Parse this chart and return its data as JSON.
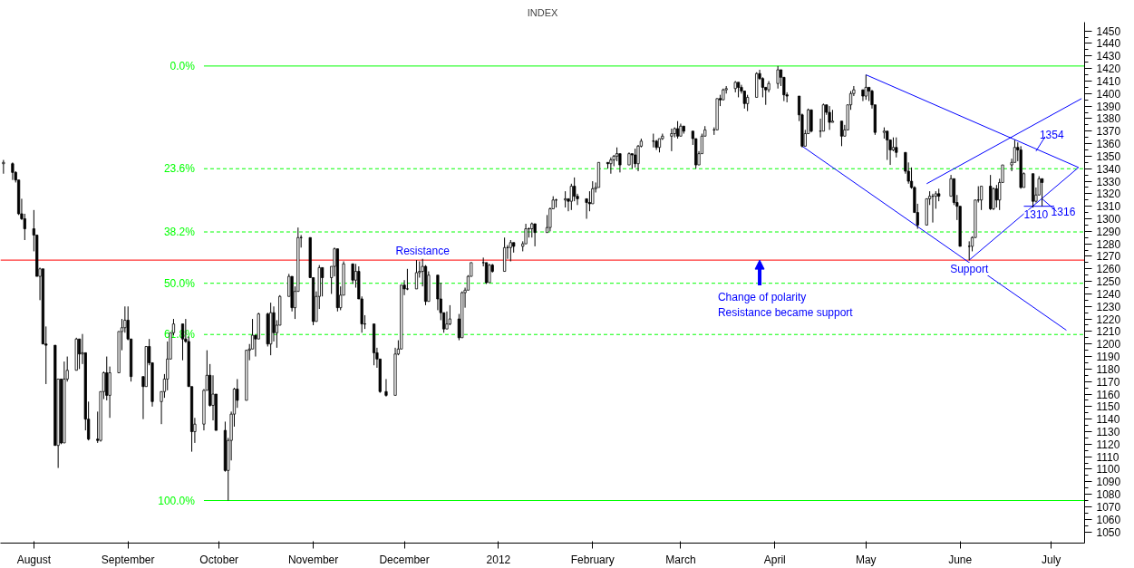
{
  "chart_data": {
    "type": "candlestick",
    "title": "INDEX",
    "x": [
      "2011-07-22",
      "2011-07-25",
      "2011-07-26",
      "2011-07-27",
      "2011-07-28",
      "2011-07-29",
      "2011-08-01",
      "2011-08-02",
      "2011-08-03",
      "2011-08-04",
      "2011-08-05",
      "2011-08-08",
      "2011-08-09",
      "2011-08-10",
      "2011-08-11",
      "2011-08-12",
      "2011-08-15",
      "2011-08-16",
      "2011-08-17",
      "2011-08-18",
      "2011-08-19",
      "2011-08-22",
      "2011-08-23",
      "2011-08-24",
      "2011-08-25",
      "2011-08-26",
      "2011-08-29",
      "2011-08-30",
      "2011-08-31",
      "2011-09-01",
      "2011-09-02",
      "2011-09-06",
      "2011-09-07",
      "2011-09-08",
      "2011-09-09",
      "2011-09-12",
      "2011-09-13",
      "2011-09-14",
      "2011-09-15",
      "2011-09-16",
      "2011-09-19",
      "2011-09-20",
      "2011-09-21",
      "2011-09-22",
      "2011-09-23",
      "2011-09-26",
      "2011-09-27",
      "2011-09-28",
      "2011-09-29",
      "2011-09-30",
      "2011-10-03",
      "2011-10-04",
      "2011-10-05",
      "2011-10-06",
      "2011-10-07",
      "2011-10-10",
      "2011-10-11",
      "2011-10-12",
      "2011-10-13",
      "2011-10-14",
      "2011-10-17",
      "2011-10-18",
      "2011-10-19",
      "2011-10-20",
      "2011-10-21",
      "2011-10-24",
      "2011-10-25",
      "2011-10-26",
      "2011-10-27",
      "2011-10-28",
      "2011-10-31",
      "2011-11-01",
      "2011-11-02",
      "2011-11-03",
      "2011-11-04",
      "2011-11-07",
      "2011-11-08",
      "2011-11-09",
      "2011-11-10",
      "2011-11-11",
      "2011-11-14",
      "2011-11-15",
      "2011-11-16",
      "2011-11-17",
      "2011-11-18",
      "2011-11-21",
      "2011-11-22",
      "2011-11-23",
      "2011-11-25",
      "2011-11-28",
      "2011-11-29",
      "2011-11-30",
      "2011-12-01",
      "2011-12-02",
      "2011-12-05",
      "2011-12-06",
      "2011-12-07",
      "2011-12-08",
      "2011-12-09",
      "2011-12-12",
      "2011-12-13",
      "2011-12-14",
      "2011-12-15",
      "2011-12-16",
      "2011-12-19",
      "2011-12-20",
      "2011-12-21",
      "2011-12-22",
      "2011-12-23",
      "2011-12-27",
      "2011-12-28",
      "2011-12-29",
      "2011-12-30",
      "2012-01-03",
      "2012-01-04",
      "2012-01-05",
      "2012-01-06",
      "2012-01-09",
      "2012-01-10",
      "2012-01-11",
      "2012-01-12",
      "2012-01-13",
      "2012-01-17",
      "2012-01-18",
      "2012-01-19",
      "2012-01-20",
      "2012-01-23",
      "2012-01-24",
      "2012-01-25",
      "2012-01-26",
      "2012-01-27",
      "2012-01-30",
      "2012-01-31",
      "2012-02-01",
      "2012-02-02",
      "2012-02-03",
      "2012-02-06",
      "2012-02-07",
      "2012-02-08",
      "2012-02-09",
      "2012-02-10",
      "2012-02-13",
      "2012-02-14",
      "2012-02-15",
      "2012-02-16",
      "2012-02-17",
      "2012-02-21",
      "2012-02-22",
      "2012-02-23",
      "2012-02-24",
      "2012-02-27",
      "2012-02-28",
      "2012-02-29",
      "2012-03-01",
      "2012-03-02",
      "2012-03-05",
      "2012-03-06",
      "2012-03-07",
      "2012-03-08",
      "2012-03-09",
      "2012-03-12",
      "2012-03-13",
      "2012-03-14",
      "2012-03-15",
      "2012-03-16",
      "2012-03-19",
      "2012-03-20",
      "2012-03-21",
      "2012-03-22",
      "2012-03-23",
      "2012-03-26",
      "2012-03-27",
      "2012-03-28",
      "2012-03-29",
      "2012-03-30",
      "2012-04-02",
      "2012-04-03",
      "2012-04-04",
      "2012-04-05",
      "2012-04-09",
      "2012-04-10",
      "2012-04-11",
      "2012-04-12",
      "2012-04-13",
      "2012-04-16",
      "2012-04-17",
      "2012-04-18",
      "2012-04-19",
      "2012-04-20",
      "2012-04-23",
      "2012-04-24",
      "2012-04-25",
      "2012-04-26",
      "2012-04-27",
      "2012-04-30",
      "2012-05-01",
      "2012-05-02",
      "2012-05-03",
      "2012-05-04",
      "2012-05-07",
      "2012-05-08",
      "2012-05-09",
      "2012-05-10",
      "2012-05-11",
      "2012-05-14",
      "2012-05-15",
      "2012-05-16",
      "2012-05-17",
      "2012-05-18",
      "2012-05-21",
      "2012-05-22",
      "2012-05-23",
      "2012-05-24",
      "2012-05-25",
      "2012-05-29",
      "2012-05-30",
      "2012-05-31",
      "2012-06-01",
      "2012-06-04",
      "2012-06-05",
      "2012-06-06",
      "2012-06-07",
      "2012-06-08",
      "2012-06-11",
      "2012-06-12",
      "2012-06-13",
      "2012-06-14",
      "2012-06-15",
      "2012-06-18",
      "2012-06-19",
      "2012-06-20",
      "2012-06-21",
      "2012-06-22",
      "2012-06-25",
      "2012-06-26",
      "2012-06-27",
      "2012-06-28"
    ],
    "ohlc": [
      [
        1344,
        1347,
        1336,
        1345
      ],
      [
        1344,
        1345,
        1331,
        1337
      ],
      [
        1337,
        1338,
        1329,
        1331
      ],
      [
        1331,
        1331,
        1303,
        1304
      ],
      [
        1304,
        1316,
        1299,
        1300
      ],
      [
        1300,
        1304,
        1283,
        1292
      ],
      [
        1292,
        1307,
        1274,
        1287
      ],
      [
        1287,
        1287,
        1254,
        1254
      ],
      [
        1254,
        1261,
        1235,
        1260
      ],
      [
        1260,
        1260,
        1200,
        1200
      ],
      [
        1200,
        1214,
        1168,
        1199
      ],
      [
        1199,
        1199,
        1119,
        1119
      ],
      [
        1119,
        1172,
        1101,
        1172
      ],
      [
        1172,
        1172,
        1120,
        1121
      ],
      [
        1121,
        1186,
        1121,
        1172
      ],
      [
        1172,
        1190,
        1170,
        1179
      ],
      [
        1179,
        1205,
        1179,
        1204
      ],
      [
        1204,
        1204,
        1180,
        1192
      ],
      [
        1192,
        1208,
        1184,
        1193
      ],
      [
        1193,
        1193,
        1131,
        1140
      ],
      [
        1140,
        1154,
        1123,
        1124
      ],
      [
        1124,
        1146,
        1121,
        1123
      ],
      [
        1123,
        1162,
        1122,
        1162
      ],
      [
        1162,
        1178,
        1156,
        1177
      ],
      [
        1177,
        1190,
        1155,
        1159
      ],
      [
        1159,
        1182,
        1141,
        1177
      ],
      [
        1177,
        1210,
        1177,
        1210
      ],
      [
        1210,
        1220,
        1195,
        1213
      ],
      [
        1213,
        1230,
        1209,
        1219
      ],
      [
        1219,
        1230,
        1203,
        1204
      ],
      [
        1204,
        1204,
        1170,
        1174
      ],
      [
        1174,
        1174,
        1140,
        1166
      ],
      [
        1166,
        1198,
        1166,
        1198
      ],
      [
        1198,
        1204,
        1183,
        1185
      ],
      [
        1185,
        1185,
        1150,
        1154
      ],
      [
        1154,
        1162,
        1136,
        1162
      ],
      [
        1162,
        1176,
        1157,
        1172
      ],
      [
        1172,
        1202,
        1163,
        1188
      ],
      [
        1188,
        1209,
        1188,
        1209
      ],
      [
        1209,
        1220,
        1207,
        1216
      ],
      [
        1216,
        1216,
        1187,
        1204
      ],
      [
        1204,
        1220,
        1201,
        1202
      ],
      [
        1202,
        1206,
        1166,
        1166
      ],
      [
        1166,
        1166,
        1114,
        1130
      ],
      [
        1130,
        1141,
        1121,
        1136
      ],
      [
        1136,
        1164,
        1131,
        1163
      ],
      [
        1163,
        1195,
        1163,
        1175
      ],
      [
        1175,
        1184,
        1150,
        1151
      ],
      [
        1151,
        1175,
        1139,
        1160
      ],
      [
        1160,
        1160,
        1131,
        1131
      ],
      [
        1131,
        1138,
        1098,
        1099
      ],
      [
        1099,
        1125,
        1075,
        1123
      ],
      [
        1123,
        1146,
        1107,
        1144
      ],
      [
        1144,
        1165,
        1134,
        1164
      ],
      [
        1164,
        1172,
        1149,
        1155
      ],
      [
        1155,
        1195,
        1155,
        1195
      ],
      [
        1195,
        1200,
        1187,
        1196
      ],
      [
        1196,
        1220,
        1196,
        1207
      ],
      [
        1207,
        1207,
        1190,
        1204
      ],
      [
        1204,
        1225,
        1204,
        1224
      ],
      [
        1224,
        1225,
        1198,
        1200
      ],
      [
        1200,
        1233,
        1191,
        1225
      ],
      [
        1225,
        1230,
        1202,
        1209
      ],
      [
        1209,
        1219,
        1197,
        1215
      ],
      [
        1215,
        1239,
        1215,
        1238
      ],
      [
        1238,
        1256,
        1238,
        1254
      ],
      [
        1254,
        1254,
        1226,
        1229
      ],
      [
        1229,
        1246,
        1220,
        1242
      ],
      [
        1242,
        1293,
        1242,
        1285
      ],
      [
        1285,
        1287,
        1277,
        1285
      ],
      [
        1285,
        1285,
        1253,
        1253
      ],
      [
        1253,
        1253,
        1215,
        1218
      ],
      [
        1218,
        1242,
        1218,
        1238
      ],
      [
        1238,
        1263,
        1228,
        1261
      ],
      [
        1261,
        1261,
        1238,
        1253
      ],
      [
        1253,
        1262,
        1240,
        1262
      ],
      [
        1262,
        1277,
        1254,
        1276
      ],
      [
        1276,
        1276,
        1226,
        1229
      ],
      [
        1229,
        1246,
        1227,
        1239
      ],
      [
        1239,
        1266,
        1239,
        1264
      ],
      [
        1264,
        1264,
        1248,
        1251
      ],
      [
        1251,
        1264,
        1245,
        1258
      ],
      [
        1258,
        1262,
        1236,
        1236
      ],
      [
        1236,
        1238,
        1209,
        1216
      ],
      [
        1216,
        1223,
        1212,
        1216
      ],
      [
        1216,
        1216,
        1183,
        1193
      ],
      [
        1193,
        1197,
        1181,
        1188
      ],
      [
        1188,
        1188,
        1161,
        1162
      ],
      [
        1162,
        1172,
        1158,
        1159
      ],
      [
        1159,
        1197,
        1159,
        1192
      ],
      [
        1192,
        1203,
        1191,
        1196
      ],
      [
        1196,
        1247,
        1196,
        1247
      ],
      [
        1247,
        1251,
        1239,
        1244
      ],
      [
        1244,
        1260,
        1243,
        1244
      ],
      [
        1244,
        1267,
        1244,
        1257
      ],
      [
        1257,
        1266,
        1253,
        1258
      ],
      [
        1258,
        1268,
        1246,
        1262
      ],
      [
        1262,
        1263,
        1231,
        1234
      ],
      [
        1234,
        1258,
        1234,
        1255
      ],
      [
        1255,
        1255,
        1227,
        1236
      ],
      [
        1236,
        1249,
        1219,
        1225
      ],
      [
        1225,
        1225,
        1209,
        1212
      ],
      [
        1212,
        1226,
        1212,
        1216
      ],
      [
        1216,
        1231,
        1215,
        1220
      ],
      [
        1220,
        1224,
        1203,
        1205
      ],
      [
        1205,
        1242,
        1205,
        1241
      ],
      [
        1241,
        1245,
        1229,
        1243
      ],
      [
        1243,
        1255,
        1243,
        1254
      ],
      [
        1254,
        1265,
        1254,
        1265
      ],
      [
        1265,
        1269,
        1262,
        1265
      ],
      [
        1265,
        1265,
        1248,
        1249
      ],
      [
        1249,
        1264,
        1249,
        1263
      ],
      [
        1263,
        1264,
        1257,
        1258
      ],
      [
        1258,
        1285,
        1258,
        1277
      ],
      [
        1277,
        1279,
        1268,
        1277
      ],
      [
        1277,
        1283,
        1266,
        1281
      ],
      [
        1281,
        1281,
        1273,
        1278
      ],
      [
        1278,
        1282,
        1274,
        1280
      ],
      [
        1280,
        1296,
        1280,
        1292
      ],
      [
        1292,
        1293,
        1285,
        1292
      ],
      [
        1292,
        1297,
        1285,
        1296
      ],
      [
        1296,
        1296,
        1278,
        1289
      ],
      [
        1289,
        1303,
        1289,
        1293
      ],
      [
        1293,
        1309,
        1290,
        1308
      ],
      [
        1308,
        1318,
        1308,
        1315
      ],
      [
        1315,
        1316,
        1309,
        1315
      ],
      [
        1315,
        1322,
        1309,
        1316
      ],
      [
        1316,
        1316,
        1306,
        1314
      ],
      [
        1314,
        1328,
        1307,
        1326
      ],
      [
        1326,
        1333,
        1314,
        1318
      ],
      [
        1318,
        1320,
        1311,
        1316
      ],
      [
        1316,
        1316,
        1300,
        1313
      ],
      [
        1313,
        1322,
        1306,
        1312
      ],
      [
        1312,
        1330,
        1312,
        1324
      ],
      [
        1324,
        1329,
        1321,
        1325
      ],
      [
        1325,
        1345,
        1325,
        1345
      ],
      [
        1345,
        1345,
        1340,
        1344
      ],
      [
        1344,
        1349,
        1336,
        1347
      ],
      [
        1347,
        1351,
        1342,
        1350
      ],
      [
        1350,
        1357,
        1346,
        1352
      ],
      [
        1352,
        1352,
        1337,
        1343
      ],
      [
        1343,
        1353,
        1343,
        1352
      ],
      [
        1352,
        1352,
        1340,
        1351
      ],
      [
        1351,
        1356,
        1341,
        1344
      ],
      [
        1344,
        1359,
        1338,
        1358
      ],
      [
        1358,
        1364,
        1357,
        1362
      ],
      [
        1362,
        1368,
        1357,
        1362
      ],
      [
        1362,
        1363,
        1355,
        1357
      ],
      [
        1357,
        1364,
        1353,
        1364
      ],
      [
        1364,
        1368,
        1363,
        1366
      ],
      [
        1366,
        1372,
        1354,
        1368
      ],
      [
        1368,
        1373,
        1365,
        1372
      ],
      [
        1372,
        1378,
        1364,
        1366
      ],
      [
        1366,
        1376,
        1366,
        1374
      ],
      [
        1374,
        1374,
        1368,
        1370
      ],
      [
        1370,
        1370,
        1359,
        1364
      ],
      [
        1364,
        1364,
        1340,
        1343
      ],
      [
        1343,
        1354,
        1343,
        1352
      ],
      [
        1352,
        1368,
        1352,
        1366
      ],
      [
        1366,
        1374,
        1366,
        1371
      ],
      [
        1371,
        1373,
        1367,
        1371
      ],
      [
        1371,
        1396,
        1371,
        1396
      ],
      [
        1396,
        1399,
        1390,
        1395
      ],
      [
        1395,
        1404,
        1395,
        1403
      ],
      [
        1403,
        1406,
        1400,
        1404
      ],
      [
        1404,
        1410,
        1401,
        1409
      ],
      [
        1409,
        1409,
        1397,
        1405
      ],
      [
        1405,
        1407,
        1400,
        1402
      ],
      [
        1402,
        1402,
        1388,
        1392
      ],
      [
        1392,
        1399,
        1386,
        1397
      ],
      [
        1397,
        1417,
        1397,
        1416
      ],
      [
        1416,
        1419,
        1411,
        1412
      ],
      [
        1412,
        1413,
        1397,
        1405
      ],
      [
        1405,
        1405,
        1391,
        1403
      ],
      [
        1403,
        1410,
        1401,
        1408
      ],
      [
        1408,
        1422,
        1404,
        1419
      ],
      [
        1419,
        1419,
        1406,
        1413
      ],
      [
        1413,
        1413,
        1394,
        1399
      ],
      [
        1399,
        1401,
        1393,
        1398
      ],
      [
        1398,
        1398,
        1378,
        1383
      ],
      [
        1383,
        1384,
        1357,
        1358
      ],
      [
        1358,
        1371,
        1358,
        1368
      ],
      [
        1368,
        1388,
        1368,
        1387
      ],
      [
        1387,
        1387,
        1369,
        1370
      ],
      [
        1370,
        1380,
        1365,
        1370
      ],
      [
        1370,
        1392,
        1370,
        1391
      ],
      [
        1391,
        1391,
        1383,
        1385
      ],
      [
        1385,
        1390,
        1371,
        1377
      ],
      [
        1377,
        1387,
        1377,
        1378
      ],
      [
        1378,
        1378,
        1358,
        1366
      ],
      [
        1366,
        1375,
        1366,
        1371
      ],
      [
        1371,
        1391,
        1371,
        1391
      ],
      [
        1391,
        1402,
        1387,
        1400
      ],
      [
        1400,
        1406,
        1398,
        1403
      ],
      [
        1403,
        1403,
        1394,
        1398
      ],
      [
        1398,
        1415,
        1395,
        1405
      ],
      [
        1405,
        1405,
        1394,
        1402
      ],
      [
        1402,
        1403,
        1388,
        1391
      ],
      [
        1391,
        1391,
        1367,
        1369
      ],
      [
        1369,
        1373,
        1364,
        1370
      ],
      [
        1370,
        1370,
        1347,
        1363
      ],
      [
        1363,
        1363,
        1343,
        1355
      ],
      [
        1355,
        1365,
        1354,
        1357
      ],
      [
        1357,
        1365,
        1349,
        1353
      ],
      [
        1353,
        1353,
        1336,
        1338
      ],
      [
        1338,
        1345,
        1328,
        1330
      ],
      [
        1330,
        1341,
        1324,
        1325
      ],
      [
        1325,
        1326,
        1305,
        1305
      ],
      [
        1305,
        1312,
        1292,
        1295
      ],
      [
        1295,
        1316,
        1295,
        1316
      ],
      [
        1316,
        1322,
        1311,
        1318
      ],
      [
        1318,
        1320,
        1297,
        1318
      ],
      [
        1318,
        1322,
        1308,
        1320
      ],
      [
        1320,
        1324,
        1314,
        1318
      ],
      [
        1318,
        1335,
        1318,
        1332
      ],
      [
        1332,
        1332,
        1311,
        1313
      ],
      [
        1313,
        1319,
        1299,
        1310
      ],
      [
        1310,
        1310,
        1278,
        1278
      ],
      [
        1278,
        1282,
        1267,
        1278
      ],
      [
        1278,
        1286,
        1274,
        1285
      ],
      [
        1285,
        1315,
        1285,
        1315
      ],
      [
        1315,
        1326,
        1313,
        1315
      ],
      [
        1315,
        1326,
        1307,
        1326
      ],
      [
        1326,
        1335,
        1307,
        1308
      ],
      [
        1308,
        1325,
        1307,
        1324
      ],
      [
        1324,
        1327,
        1309,
        1315
      ],
      [
        1315,
        1332,
        1307,
        1329
      ],
      [
        1329,
        1343,
        1329,
        1343
      ],
      [
        1343,
        1348,
        1338,
        1345
      ],
      [
        1345,
        1363,
        1345,
        1357
      ],
      [
        1357,
        1361,
        1346,
        1355
      ],
      [
        1355,
        1358,
        1324,
        1325
      ],
      [
        1325,
        1337,
        1325,
        1336
      ],
      [
        1336,
        1336,
        1309,
        1314
      ],
      [
        1314,
        1325,
        1313,
        1319
      ],
      [
        1319,
        1334,
        1319,
        1332
      ],
      [
        1332,
        1332,
        1310,
        1329
      ]
    ],
    "series": [
      {
        "type": "line",
        "color": "#0000ff",
        "x": [
          "2012-04-10",
          "2012-07-06"
        ],
        "values": [
          1358,
          1211
        ]
      },
      {
        "type": "line",
        "color": "#0000ff",
        "x": [
          "2012-05-01",
          "2012-07-10"
        ],
        "values": [
          1415,
          1341
        ]
      },
      {
        "type": "line",
        "color": "#0000ff",
        "x": [
          "2012-06-04",
          "2012-07-10"
        ],
        "values": [
          1267,
          1341
        ]
      },
      {
        "type": "line",
        "color": "#0000ff",
        "x": [
          "2012-05-21",
          "2012-07-11"
        ],
        "values": [
          1328,
          1396
        ]
      },
      {
        "type": "line",
        "color": "#0000ff",
        "x": [
          "2012-06-22",
          "2012-07-02"
        ],
        "values": [
          1310,
          1310
        ]
      }
    ],
    "ref_lines": [
      {
        "axis": "y",
        "value": 1267,
        "color": "#ff0000",
        "line_style": "solid"
      },
      {
        "axis": "y",
        "value": 1422,
        "color": "#00ff00",
        "line_style": "solid"
      },
      {
        "axis": "y",
        "value": 1340,
        "color": "#00ff00",
        "line_style": "dashed"
      },
      {
        "axis": "y",
        "value": 1289.5,
        "color": "#00ff00",
        "line_style": "dashed"
      },
      {
        "axis": "y",
        "value": 1248.5,
        "color": "#00ff00",
        "line_style": "dashed"
      },
      {
        "axis": "y",
        "value": 1207.6,
        "color": "#00ff00",
        "line_style": "dashed"
      },
      {
        "axis": "y",
        "value": 1075,
        "color": "#00ff00",
        "line_style": "solid"
      }
    ],
    "annotations": [
      {
        "text": "0.0%",
        "x": "2011-09-26",
        "y": 1422
      },
      {
        "text": "23.6%",
        "x": "2011-09-26",
        "y": 1340
      },
      {
        "text": "38.2%",
        "x": "2011-09-26",
        "y": 1289.5
      },
      {
        "text": "50.0%",
        "x": "2011-09-26",
        "y": 1248.5
      },
      {
        "text": "61.8%",
        "x": "2011-09-26",
        "y": 1207.6
      },
      {
        "text": "100.0%",
        "x": "2011-09-26",
        "y": 1075
      },
      {
        "text": "Resistance",
        "x": "2011-12-07",
        "y": 1267
      },
      {
        "text": "Change of polarity\nResistance became support",
        "x": "2012-03-27",
        "y": 1267
      },
      {
        "text": "Support",
        "x": "2012-06-04",
        "y": 1267
      },
      {
        "text": "1354",
        "x": "2012-06-26",
        "y": 1354
      },
      {
        "text": "1310",
        "x": "2012-06-26",
        "y": 1310
      },
      {
        "text": "1316",
        "x": "2012-06-28",
        "y": 1316
      }
    ],
    "xlim": [
      "2011-07-21",
      "2012-07-12"
    ],
    "ylim": [
      1041,
      1457
    ],
    "xticks": [
      {
        "value": "2011-08-01",
        "label": "August"
      },
      {
        "value": "2011-09-01",
        "label": "September"
      },
      {
        "value": "2011-10-01",
        "label": "October"
      },
      {
        "value": "2011-11-01",
        "label": "November"
      },
      {
        "value": "2011-12-01",
        "label": "December"
      },
      {
        "value": "2012-01-01",
        "label": "2012"
      },
      {
        "value": "2012-02-01",
        "label": "February"
      },
      {
        "value": "2012-03-01",
        "label": "March"
      },
      {
        "value": "2012-04-01",
        "label": "April"
      },
      {
        "value": "2012-05-01",
        "label": "May"
      },
      {
        "value": "2012-06-01",
        "label": "June"
      },
      {
        "value": "2012-07-01",
        "label": "July"
      }
    ],
    "yticks": [
      1050,
      1060,
      1070,
      1080,
      1090,
      1100,
      1110,
      1120,
      1130,
      1140,
      1150,
      1160,
      1170,
      1180,
      1190,
      1200,
      1210,
      1220,
      1230,
      1240,
      1250,
      1260,
      1270,
      1280,
      1290,
      1300,
      1310,
      1320,
      1330,
      1340,
      1350,
      1360,
      1370,
      1380,
      1390,
      1400,
      1410,
      1420,
      1430,
      1440,
      1450
    ],
    "grid": false
  }
}
